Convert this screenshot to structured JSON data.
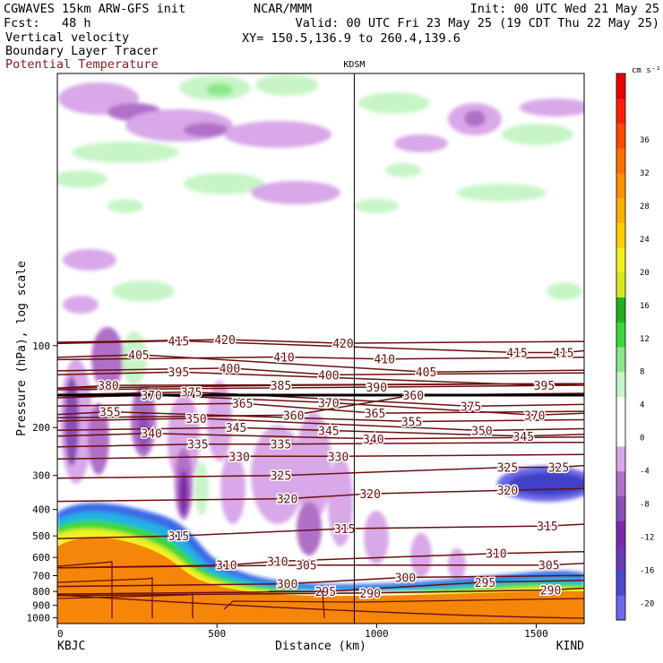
{
  "header": {
    "model": "CGWAVES 15km ARW-GFS init",
    "forecast": "Fcst:   48 h",
    "field1": "Vertical velocity",
    "field2": "Boundary Layer Tracer",
    "field3": "Potential Temperature",
    "org": "NCAR/MMM",
    "init": "Init: 00 UTC Wed 21 May 25",
    "valid": "Valid: 00 UTC Fri 23 May 25 (19 CDT Thu 22 May 25)",
    "xy": "XY= 150.5,136.9 to 260.4,139.6",
    "station_marker": "KDSM"
  },
  "colors": {
    "theta": "#6b0f0f",
    "tropopause": "#000000",
    "terrain": "#f5860a",
    "colorbar": [
      "#6a6ae8",
      "#4a4ad0",
      "#6a3ab8",
      "#7a2aa8",
      "#8a50b8",
      "#b070c8",
      "#d8a8e8",
      "#ffffff",
      "#ffffff",
      "#c8f5c8",
      "#8ae88a",
      "#3ad83a",
      "#20b020",
      "#d8e820",
      "#f0f020",
      "#ffd000",
      "#ffb000",
      "#ff9000",
      "#ff7000",
      "#ff4a00",
      "#ff2000",
      "#e80000"
    ]
  },
  "chart_data": {
    "type": "heatmap",
    "title": "",
    "xlabel": "Distance (km)",
    "ylabel": "Pressure (hPa), log scale",
    "xlim": [
      0,
      1650
    ],
    "ylim": [
      1050,
      10
    ],
    "y_scale": "log",
    "x_ticks": [
      0,
      500,
      1000,
      1500
    ],
    "y_ticks": [
      100,
      200,
      300,
      400,
      500,
      600,
      700,
      800,
      900,
      1000
    ],
    "x_end_labels": [
      "KBJC",
      "KIND"
    ],
    "station": {
      "name": "KDSM",
      "x": 930
    },
    "colorbar": {
      "unit": "cm s⁻¹",
      "ticks": [
        -20,
        -16,
        -12,
        -8,
        -4,
        0,
        4,
        8,
        12,
        16,
        20,
        24,
        28,
        32,
        36
      ]
    },
    "tropopause_pressure": 152,
    "theta_contours": [
      {
        "value": 290,
        "labels": [
          {
            "x": 980,
            "p": 810
          },
          {
            "x": 1545,
            "p": 790
          }
        ]
      },
      {
        "value": 295,
        "labels": [
          {
            "x": 840,
            "p": 800
          },
          {
            "x": 1340,
            "p": 740
          }
        ]
      },
      {
        "value": 300,
        "labels": [
          {
            "x": 720,
            "p": 750
          },
          {
            "x": 1090,
            "p": 710
          }
        ]
      },
      {
        "value": 305,
        "labels": [
          {
            "x": 780,
            "p": 640
          },
          {
            "x": 1540,
            "p": 640
          }
        ]
      },
      {
        "value": 310,
        "labels": [
          {
            "x": 530,
            "p": 640
          },
          {
            "x": 690,
            "p": 620
          },
          {
            "x": 1375,
            "p": 580
          }
        ]
      },
      {
        "value": 315,
        "labels": [
          {
            "x": 380,
            "p": 500
          },
          {
            "x": 900,
            "p": 470
          },
          {
            "x": 1535,
            "p": 460
          }
        ]
      },
      {
        "value": 320,
        "labels": [
          {
            "x": 720,
            "p": 365
          },
          {
            "x": 980,
            "p": 350
          },
          {
            "x": 1410,
            "p": 340
          }
        ]
      },
      {
        "value": 325,
        "labels": [
          {
            "x": 700,
            "p": 300
          },
          {
            "x": 1410,
            "p": 280
          },
          {
            "x": 1570,
            "p": 280
          }
        ]
      },
      {
        "value": 330,
        "labels": [
          {
            "x": 570,
            "p": 255
          },
          {
            "x": 880,
            "p": 255
          }
        ]
      },
      {
        "value": 335,
        "labels": [
          {
            "x": 440,
            "p": 230
          },
          {
            "x": 700,
            "p": 230
          }
        ]
      },
      {
        "value": 340,
        "labels": [
          {
            "x": 295,
            "p": 210
          },
          {
            "x": 990,
            "p": 220
          }
        ]
      },
      {
        "value": 345,
        "labels": [
          {
            "x": 560,
            "p": 200
          },
          {
            "x": 850,
            "p": 205
          },
          {
            "x": 1460,
            "p": 215
          }
        ]
      },
      {
        "value": 350,
        "labels": [
          {
            "x": 435,
            "p": 185
          },
          {
            "x": 1330,
            "p": 205
          }
        ]
      },
      {
        "value": 355,
        "labels": [
          {
            "x": 165,
            "p": 175
          },
          {
            "x": 1110,
            "p": 190
          }
        ]
      },
      {
        "value": 360,
        "labels": [
          {
            "x": 740,
            "p": 180
          },
          {
            "x": 1115,
            "p": 152
          }
        ]
      },
      {
        "value": 365,
        "labels": [
          {
            "x": 580,
            "p": 163
          },
          {
            "x": 995,
            "p": 177
          }
        ]
      },
      {
        "value": 370,
        "labels": [
          {
            "x": 295,
            "p": 152
          },
          {
            "x": 850,
            "p": 162
          },
          {
            "x": 1495,
            "p": 180
          }
        ]
      },
      {
        "value": 375,
        "labels": [
          {
            "x": 420,
            "p": 148
          },
          {
            "x": 1295,
            "p": 167
          }
        ]
      },
      {
        "value": 380,
        "labels": [
          {
            "x": 160,
            "p": 140
          }
        ]
      },
      {
        "value": 385,
        "labels": [
          {
            "x": 700,
            "p": 140
          }
        ]
      },
      {
        "value": 390,
        "labels": [
          {
            "x": 1000,
            "p": 142
          }
        ]
      },
      {
        "value": 395,
        "labels": [
          {
            "x": 380,
            "p": 125
          },
          {
            "x": 1525,
            "p": 140
          }
        ]
      },
      {
        "value": 400,
        "labels": [
          {
            "x": 540,
            "p": 121
          },
          {
            "x": 850,
            "p": 128
          }
        ]
      },
      {
        "value": 405,
        "labels": [
          {
            "x": 255,
            "p": 108
          },
          {
            "x": 1155,
            "p": 125
          }
        ]
      },
      {
        "value": 410,
        "labels": [
          {
            "x": 710,
            "p": 110
          },
          {
            "x": 1025,
            "p": 112
          }
        ]
      },
      {
        "value": 415,
        "labels": [
          {
            "x": 380,
            "p": 96
          },
          {
            "x": 1440,
            "p": 106
          },
          {
            "x": 1585,
            "p": 106
          }
        ]
      },
      {
        "value": 420,
        "labels": [
          {
            "x": 525,
            "p": 95
          },
          {
            "x": 895,
            "p": 98
          }
        ]
      }
    ]
  }
}
